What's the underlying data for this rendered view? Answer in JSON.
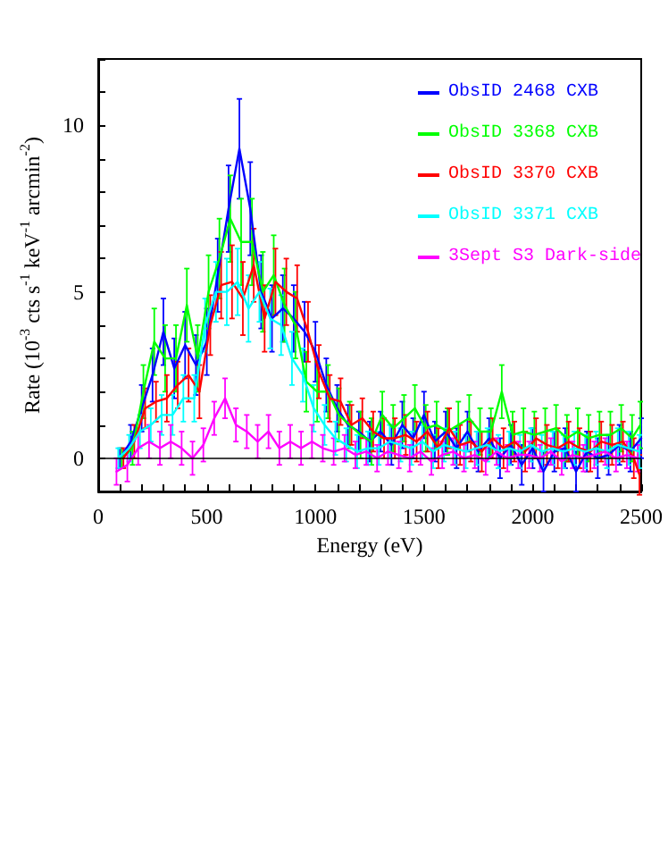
{
  "chart_data": {
    "type": "line",
    "xlabel": "Energy (eV)",
    "ylabel": "Rate (10$^{-3}$ cts s$^{-1}$ keV$^{-1}$ arcmin$^{-2}$)",
    "x": [
      100,
      150,
      200,
      250,
      300,
      350,
      400,
      450,
      500,
      550,
      600,
      650,
      700,
      750,
      800,
      850,
      900,
      950,
      1000,
      1050,
      1100,
      1150,
      1200,
      1250,
      1300,
      1350,
      1400,
      1450,
      1500,
      1550,
      1600,
      1650,
      1700,
      1750,
      1800,
      1850,
      1900,
      1950,
      2000,
      2050,
      2100,
      2150,
      2200,
      2250,
      2300,
      2350,
      2400,
      2450,
      2500
    ],
    "series": [
      {
        "name": "ObsID 2468 CXB",
        "color": "#0000ff",
        "values": [
          0,
          0.5,
          1.5,
          2.5,
          3.8,
          2.7,
          3.4,
          2.8,
          3.5,
          5.5,
          7.5,
          9.3,
          7.5,
          5.0,
          4.2,
          4.5,
          4.2,
          3.8,
          3.2,
          2.2,
          1.5,
          1.0,
          0.8,
          0.5,
          0.8,
          0.4,
          1.0,
          0.6,
          1.3,
          0.5,
          0.8,
          0.3,
          0.8,
          0.2,
          0.6,
          0,
          0.4,
          -0.2,
          0.3,
          -0.4,
          0.2,
          0.3,
          -0.4,
          0.2,
          0,
          0.1,
          0.4,
          0.2,
          0.6
        ],
        "errors": [
          0.3,
          0.5,
          0.7,
          0.8,
          1.0,
          0.9,
          1.0,
          0.9,
          1.0,
          1.1,
          1.3,
          1.5,
          1.4,
          1.1,
          1.0,
          1.0,
          1.0,
          0.9,
          0.9,
          0.8,
          0.7,
          0.6,
          0.6,
          0.6,
          0.6,
          0.6,
          0.7,
          0.6,
          0.7,
          0.6,
          0.6,
          0.6,
          0.6,
          0.6,
          0.6,
          0.6,
          0.6,
          0.6,
          0.6,
          0.6,
          0.6,
          0.6,
          0.6,
          0.6,
          0.6,
          0.6,
          0.6,
          0.6,
          0.6
        ]
      },
      {
        "name": "ObsID 3368 CXB",
        "color": "#00ff00",
        "x": [
          108,
          158,
          208,
          258,
          308,
          358,
          408,
          458,
          508,
          558,
          608,
          658,
          708,
          758,
          808,
          858,
          908,
          958,
          1008,
          1058,
          1108,
          1158,
          1208,
          1258,
          1308,
          1358,
          1408,
          1458,
          1508,
          1558,
          1608,
          1658,
          1708,
          1758,
          1808,
          1858,
          1908,
          1958,
          2008,
          2058,
          2108,
          2158,
          2208,
          2258,
          2308,
          2358,
          2408,
          2458,
          2496
        ],
        "values": [
          0,
          0.3,
          2.0,
          3.5,
          3.0,
          3.0,
          4.6,
          3.0,
          5.0,
          6.0,
          7.2,
          6.5,
          6.5,
          5.0,
          5.5,
          4.6,
          4.0,
          2.3,
          2.0,
          2.0,
          1.3,
          1.0,
          0.7,
          0.5,
          1.3,
          0.9,
          1.2,
          1.5,
          0.9,
          1.0,
          0.8,
          1.0,
          1.2,
          0.8,
          0.8,
          2.0,
          0.7,
          0.8,
          0.7,
          0.8,
          0.9,
          0.6,
          0.8,
          0.6,
          0.7,
          0.7,
          0.9,
          0.6,
          1.0
        ],
        "errors": [
          0.3,
          0.5,
          0.8,
          1.0,
          1.0,
          1.0,
          1.1,
          1.0,
          1.1,
          1.2,
          1.3,
          1.3,
          1.3,
          1.2,
          1.2,
          1.1,
          1.0,
          0.9,
          0.9,
          0.8,
          0.8,
          0.7,
          0.7,
          0.7,
          0.7,
          0.7,
          0.7,
          0.7,
          0.7,
          0.7,
          0.7,
          0.7,
          0.7,
          0.7,
          0.7,
          0.8,
          0.7,
          0.7,
          0.7,
          0.7,
          0.7,
          0.7,
          0.7,
          0.7,
          0.7,
          0.7,
          0.7,
          0.7,
          0.7
        ]
      },
      {
        "name": "ObsID 3370 CXB",
        "color": "#ff0000",
        "x": [
          116,
          166,
          216,
          266,
          316,
          366,
          416,
          466,
          516,
          566,
          616,
          666,
          716,
          766,
          816,
          866,
          916,
          966,
          1016,
          1066,
          1116,
          1166,
          1216,
          1266,
          1316,
          1366,
          1416,
          1466,
          1516,
          1566,
          1616,
          1666,
          1716,
          1766,
          1816,
          1866,
          1916,
          1966,
          2016,
          2066,
          2116,
          2166,
          2216,
          2266,
          2316,
          2366,
          2416,
          2466,
          2492
        ],
        "values": [
          0,
          0.5,
          1.5,
          1.7,
          1.8,
          2.2,
          2.5,
          2.0,
          4.0,
          5.2,
          5.3,
          4.8,
          5.8,
          4.2,
          5.3,
          5.0,
          4.8,
          3.8,
          2.6,
          1.8,
          1.7,
          1.0,
          1.2,
          0.8,
          0.6,
          0.6,
          0.7,
          0.5,
          0.8,
          0.3,
          0.9,
          0.4,
          0.5,
          0.2,
          0.6,
          0.3,
          0.5,
          0.2,
          0.6,
          0.4,
          0.3,
          0.5,
          0.3,
          0.2,
          0.5,
          0.4,
          0.5,
          0,
          -0.5
        ],
        "errors": [
          0.3,
          0.5,
          0.6,
          0.6,
          0.7,
          0.7,
          0.8,
          0.8,
          0.9,
          1.0,
          1.1,
          1.1,
          1.1,
          1.0,
          1.0,
          1.0,
          1.0,
          0.9,
          0.8,
          0.7,
          0.7,
          0.6,
          0.6,
          0.6,
          0.6,
          0.6,
          0.6,
          0.6,
          0.6,
          0.6,
          0.6,
          0.6,
          0.6,
          0.6,
          0.6,
          0.6,
          0.6,
          0.6,
          0.6,
          0.6,
          0.6,
          0.6,
          0.6,
          0.6,
          0.6,
          0.6,
          0.6,
          0.6,
          0.6
        ]
      },
      {
        "name": "ObsID 3371 CXB",
        "color": "#00ffff",
        "x": [
          92,
          142,
          192,
          242,
          292,
          342,
          392,
          442,
          492,
          542,
          592,
          642,
          692,
          742,
          792,
          842,
          892,
          942,
          992,
          1042,
          1092,
          1142,
          1192,
          1242,
          1292,
          1342,
          1392,
          1442,
          1492,
          1542,
          1592,
          1642,
          1692,
          1742,
          1792,
          1842,
          1892,
          1942,
          1992,
          2042,
          2092,
          2142,
          2192,
          2242,
          2292,
          2342,
          2392,
          2442,
          2492
        ],
        "values": [
          0,
          0.3,
          0.8,
          1.0,
          1.3,
          1.3,
          1.8,
          1.8,
          4.0,
          5.0,
          5.0,
          5.3,
          4.5,
          5.0,
          4.2,
          4.0,
          3.0,
          2.5,
          1.5,
          1.0,
          0.6,
          0.4,
          0.2,
          0.3,
          0.3,
          0.5,
          0.4,
          0.3,
          0.5,
          0.2,
          0.4,
          0.3,
          0.2,
          0.3,
          0.4,
          0.2,
          0.3,
          0.2,
          0.4,
          0.2,
          0.3,
          0.2,
          0.3,
          0.2,
          0.3,
          0.2,
          0.4,
          0.3,
          0.2
        ],
        "errors": [
          0.3,
          0.4,
          0.5,
          0.5,
          0.6,
          0.6,
          0.7,
          0.7,
          0.8,
          0.9,
          1.0,
          1.0,
          1.0,
          0.9,
          0.9,
          0.9,
          0.8,
          0.8,
          0.7,
          0.6,
          0.5,
          0.5,
          0.5,
          0.5,
          0.5,
          0.5,
          0.5,
          0.5,
          0.5,
          0.5,
          0.5,
          0.5,
          0.5,
          0.5,
          0.5,
          0.5,
          0.5,
          0.5,
          0.5,
          0.5,
          0.5,
          0.5,
          0.5,
          0.5,
          0.5,
          0.5,
          0.5,
          0.5,
          0.5
        ]
      },
      {
        "name": "3Sept S3 Dark-side",
        "color": "#ff00ff",
        "x": [
          84,
          134,
          184,
          234,
          284,
          334,
          384,
          434,
          484,
          534,
          584,
          634,
          684,
          734,
          784,
          834,
          884,
          934,
          984,
          1034,
          1084,
          1134,
          1184,
          1234,
          1284,
          1334,
          1384,
          1434,
          1484,
          1534,
          1584,
          1634,
          1684,
          1734,
          1784,
          1834,
          1884,
          1934,
          1984,
          2034,
          2084,
          2134,
          2184,
          2234,
          2284,
          2334,
          2384,
          2434,
          2484
        ],
        "values": [
          -0.4,
          -0.2,
          0.3,
          0.5,
          0.3,
          0.5,
          0.3,
          0,
          0.4,
          1.2,
          1.8,
          1.0,
          0.8,
          0.5,
          0.8,
          0.3,
          0.5,
          0.3,
          0.5,
          0.3,
          0.2,
          0.3,
          0.1,
          0.2,
          0,
          0.2,
          0.1,
          0,
          0.2,
          -0.1,
          0.1,
          0.2,
          0,
          0.1,
          -0.1,
          0.2,
          0,
          0.1,
          0.1,
          0,
          0.2,
          -0.1,
          0.1,
          0,
          0.1,
          0.2,
          0,
          0.1,
          0
        ],
        "errors": [
          0.4,
          0.5,
          0.5,
          0.5,
          0.5,
          0.5,
          0.5,
          0.5,
          0.5,
          0.5,
          0.6,
          0.5,
          0.5,
          0.5,
          0.5,
          0.5,
          0.5,
          0.5,
          0.5,
          0.4,
          0.4,
          0.4,
          0.4,
          0.4,
          0.4,
          0.4,
          0.4,
          0.4,
          0.4,
          0.4,
          0.4,
          0.4,
          0.4,
          0.4,
          0.4,
          0.4,
          0.4,
          0.4,
          0.4,
          0.4,
          0.4,
          0.4,
          0.4,
          0.4,
          0.4,
          0.4,
          0.4,
          0.4,
          0.4
        ]
      }
    ],
    "xlim": [
      0,
      2500
    ],
    "xticks": [
      0,
      {
        "value": 100,
        "label": null
      },
      {
        "value": 200,
        "label": null
      },
      {
        "value": 300,
        "label": null
      },
      {
        "value": 400,
        "label": null
      },
      500,
      {
        "value": 600,
        "label": null
      },
      {
        "value": 700,
        "label": null
      },
      {
        "value": 800,
        "label": null
      },
      {
        "value": 900,
        "label": null
      },
      1000,
      {
        "value": 1100,
        "label": null
      },
      {
        "value": 1200,
        "label": null
      },
      {
        "value": 1300,
        "label": null
      },
      {
        "value": 1400,
        "label": null
      },
      1500,
      {
        "value": 1600,
        "label": null
      },
      {
        "value": 1700,
        "label": null
      },
      {
        "value": 1800,
        "label": null
      },
      {
        "value": 1900,
        "label": null
      },
      2000,
      {
        "value": 2100,
        "label": null
      },
      {
        "value": 2200,
        "label": null
      },
      {
        "value": 2300,
        "label": null
      },
      {
        "value": 2400,
        "label": null
      },
      2500
    ],
    "ylim": [
      -1,
      12
    ],
    "yticks": [
      {
        "value": -1,
        "label": null
      },
      0,
      {
        "value": 1,
        "label": null
      },
      {
        "value": 2,
        "label": null
      },
      {
        "value": 3,
        "label": null
      },
      {
        "value": 4,
        "label": null
      },
      5,
      {
        "value": 6,
        "label": null
      },
      {
        "value": 7,
        "label": null
      },
      {
        "value": 8,
        "label": null
      },
      {
        "value": 9,
        "label": null
      },
      10,
      {
        "value": 11,
        "label": null
      },
      {
        "value": 12,
        "label": null
      }
    ],
    "ref_lines": [
      {
        "axis": "y",
        "value": 0,
        "color": "#000000"
      }
    ],
    "legend": "top right",
    "marker": "none",
    "line_style": "solid",
    "grid": false
  }
}
